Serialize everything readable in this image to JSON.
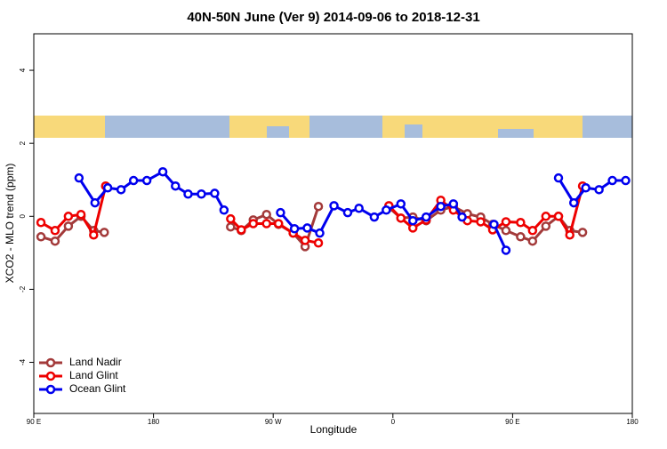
{
  "chart_data": {
    "type": "line",
    "title": "40N-50N June (Ver 9)   2014-09-06 to 2018-12-31",
    "x_label": "Longitude",
    "y_label": "XCO2 - MLO trend (ppm)",
    "xlim": [
      90,
      540
    ],
    "ylim": [
      -5.4,
      5.0
    ],
    "xticks": [
      {
        "value": 90,
        "label": "90 E"
      },
      180,
      {
        "value": 270,
        "label": "90 W"
      },
      {
        "value": 360,
        "label": "0"
      },
      {
        "value": 450,
        "label": "90 E"
      },
      {
        "value": 540,
        "label": "180"
      }
    ],
    "yticks": [
      4,
      2,
      0,
      -2,
      -4
    ],
    "legend": "bottom-left",
    "series": [
      {
        "name": "Land Nadir",
        "color": "#a33a3a",
        "x": [
          95.4,
          106,
          116,
          125.5,
          135,
          143,
          null,
          238,
          246,
          255,
          265,
          274,
          285,
          294,
          304,
          null,
          357,
          366,
          375,
          385,
          396,
          405.5,
          416,
          426,
          435,
          445,
          456,
          465,
          475,
          484.5,
          493,
          502.6
        ],
        "values": [
          -0.56,
          -0.68,
          -0.27,
          0,
          -0.39,
          -0.44,
          null,
          -0.29,
          -0.39,
          -0.1,
          0.05,
          -0.22,
          -0.46,
          -0.83,
          0.27,
          null,
          0.24,
          -0.05,
          -0.02,
          -0.12,
          0.17,
          0.27,
          0.07,
          -0.02,
          -0.22,
          -0.39,
          -0.56,
          -0.68,
          -0.27,
          0,
          -0.39,
          -0.44
        ]
      },
      {
        "name": "Land Glint",
        "color": "#ee0000",
        "x": [
          95.4,
          106,
          116,
          125.5,
          135,
          144,
          null,
          238,
          246,
          255,
          265,
          274,
          285,
          294,
          304,
          null,
          357,
          366,
          375,
          385,
          396,
          405.5,
          416,
          426,
          435,
          445,
          456,
          465,
          475,
          484.5,
          493,
          502.6
        ],
        "values": [
          -0.17,
          -0.39,
          0,
          0.05,
          -0.51,
          0.83,
          null,
          -0.07,
          -0.37,
          -0.2,
          -0.2,
          -0.2,
          -0.46,
          -0.66,
          -0.73,
          null,
          0.29,
          -0.05,
          -0.32,
          -0.1,
          0.44,
          0.17,
          -0.12,
          -0.15,
          -0.37,
          -0.15,
          -0.17,
          -0.39,
          0,
          0,
          -0.51,
          0.83
        ]
      },
      {
        "name": "Ocean Glint",
        "color": "#0000ee",
        "x": [
          124,
          136,
          145.6,
          155.6,
          165,
          175,
          187,
          196.5,
          206,
          216,
          226,
          233,
          null,
          275.5,
          286,
          295.6,
          305,
          315.7,
          326,
          334.5,
          346,
          355,
          366,
          375,
          385,
          396,
          405.5,
          412,
          null,
          436,
          445,
          null,
          484.5,
          496,
          505,
          515,
          525,
          535
        ],
        "values": [
          1.05,
          0.37,
          0.78,
          0.73,
          0.98,
          0.98,
          1.22,
          0.83,
          0.61,
          0.61,
          0.63,
          0.17,
          null,
          0.1,
          -0.34,
          -0.32,
          -0.46,
          0.29,
          0.1,
          0.22,
          -0.02,
          0.17,
          0.34,
          -0.12,
          -0.02,
          0.27,
          0.34,
          -0.02,
          null,
          -0.22,
          -0.93,
          null,
          1.05,
          0.37,
          0.78,
          0.73,
          0.98,
          0.98
        ]
      }
    ]
  }
}
